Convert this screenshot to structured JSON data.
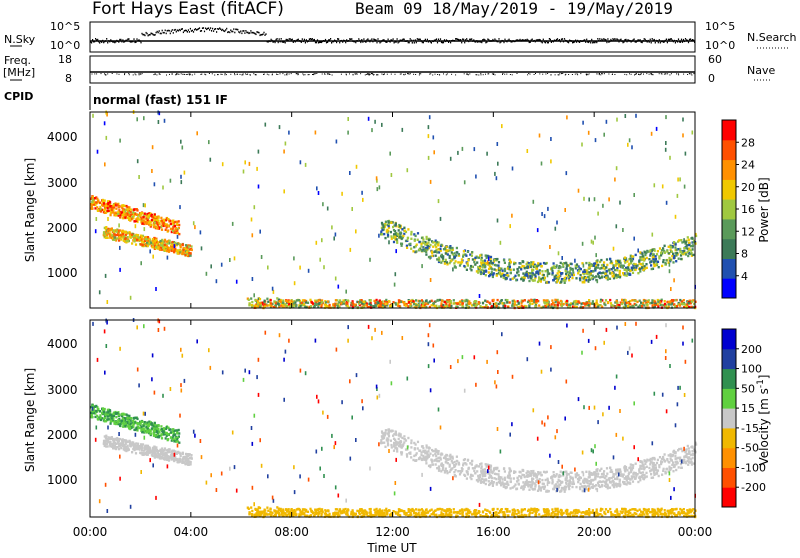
{
  "header": {
    "radar": "Fort Hays East (fitACF)",
    "beam_and_date": "Beam 09  18/May/2019 - 19/May/2019"
  },
  "nsky_panel": {
    "left_label": "N.Sky",
    "left_ticks": [
      "10^5",
      "10^0"
    ],
    "right_label": "N.Search",
    "right_ticks": [
      "10^5",
      "10^0"
    ]
  },
  "freq_panel": {
    "left_label_line1": "Freq.",
    "left_label_line2": "[MHz]",
    "left_ticks": [
      "18",
      "8"
    ],
    "right_label": "Nave",
    "right_ticks": [
      "60",
      "0"
    ]
  },
  "cpid_panel": {
    "left_label": "CPID",
    "text": "normal (fast) 151 IF"
  },
  "power_panel": {
    "ylabel": "Slant Range [km]",
    "yticks": [
      "4000",
      "3000",
      "2000",
      "1000"
    ],
    "colorbar_label": "Power [dB]",
    "colorbar_ticks": [
      "28",
      "24",
      "20",
      "16",
      "12",
      "8",
      "4"
    ]
  },
  "velocity_panel": {
    "ylabel": "Slant Range [km]",
    "yticks": [
      "4000",
      "3000",
      "2000",
      "1000"
    ],
    "colorbar_label": "Velocity [m s^-1]",
    "colorbar_ticks": [
      "200",
      "100",
      "50",
      "15",
      "-15",
      "-50",
      "-100",
      "-200"
    ]
  },
  "xaxis": {
    "ticks": [
      "00:00",
      "04:00",
      "08:00",
      "12:00",
      "16:00",
      "20:00",
      "00:00"
    ],
    "label": "Time UT"
  },
  "chart_data": [
    {
      "type": "heatmap",
      "title": "",
      "xlabel": "Time UT",
      "ylabel": "Slant Range [km]",
      "xlim_hours": [
        0,
        24
      ],
      "ylim_km": [
        180,
        4500
      ],
      "color_quantity": "Power [dB]",
      "color_range": [
        0,
        30
      ],
      "colors": [
        "#0000ff",
        "#2050b0",
        "#3c7a58",
        "#5a9a5a",
        "#a0c840",
        "#f0c800",
        "#ff9000",
        "#ff5000",
        "#ff0000"
      ],
      "features": [
        {
          "name": "evening band (upper)",
          "time_h": [
            0.0,
            3.5
          ],
          "range_km": [
            1900,
            2700
          ],
          "level_db": [
            16,
            28
          ]
        },
        {
          "name": "evening band (lower)",
          "time_h": [
            0.5,
            4.0
          ],
          "range_km": [
            1300,
            1900
          ],
          "level_db": [
            12,
            26
          ]
        },
        {
          "name": "near-range ground echoes",
          "time_h": [
            6.2,
            24.0
          ],
          "range_km": [
            180,
            450
          ],
          "level_db": [
            8,
            28
          ]
        },
        {
          "name": "night arc",
          "time_h": [
            11.5,
            24.0
          ],
          "range_km": [
            650,
            2100
          ],
          "level_db": [
            4,
            20
          ]
        }
      ]
    },
    {
      "type": "heatmap",
      "title": "",
      "xlabel": "Time UT",
      "ylabel": "Slant Range [km]",
      "xlim_hours": [
        0,
        24
      ],
      "ylim_km": [
        180,
        4500
      ],
      "color_quantity": "Velocity [m s^-1]",
      "color_levels": [
        -200,
        -100,
        -50,
        -15,
        15,
        50,
        100,
        200
      ],
      "colors": [
        "#ff0000",
        "#ff5000",
        "#ff9000",
        "#f0b800",
        "#c8c8c8",
        "#60d040",
        "#309050",
        "#2040a0",
        "#0000d0"
      ],
      "features": [
        {
          "name": "evening band (upper)",
          "time_h": [
            0.0,
            3.5
          ],
          "range_km": [
            1900,
            2700
          ],
          "velocity_ms": [
            15,
            80
          ]
        },
        {
          "name": "evening band (lower)",
          "time_h": [
            0.5,
            4.0
          ],
          "range_km": [
            1300,
            1900
          ],
          "velocity_ms": [
            -15,
            15
          ]
        },
        {
          "name": "near-range ground echoes",
          "time_h": [
            6.2,
            24.0
          ],
          "range_km": [
            180,
            450
          ],
          "velocity_ms": [
            -50,
            -15
          ]
        },
        {
          "name": "night arc",
          "time_h": [
            11.5,
            24.0
          ],
          "range_km": [
            650,
            2100
          ],
          "velocity_ms": [
            -15,
            15
          ]
        }
      ]
    }
  ]
}
